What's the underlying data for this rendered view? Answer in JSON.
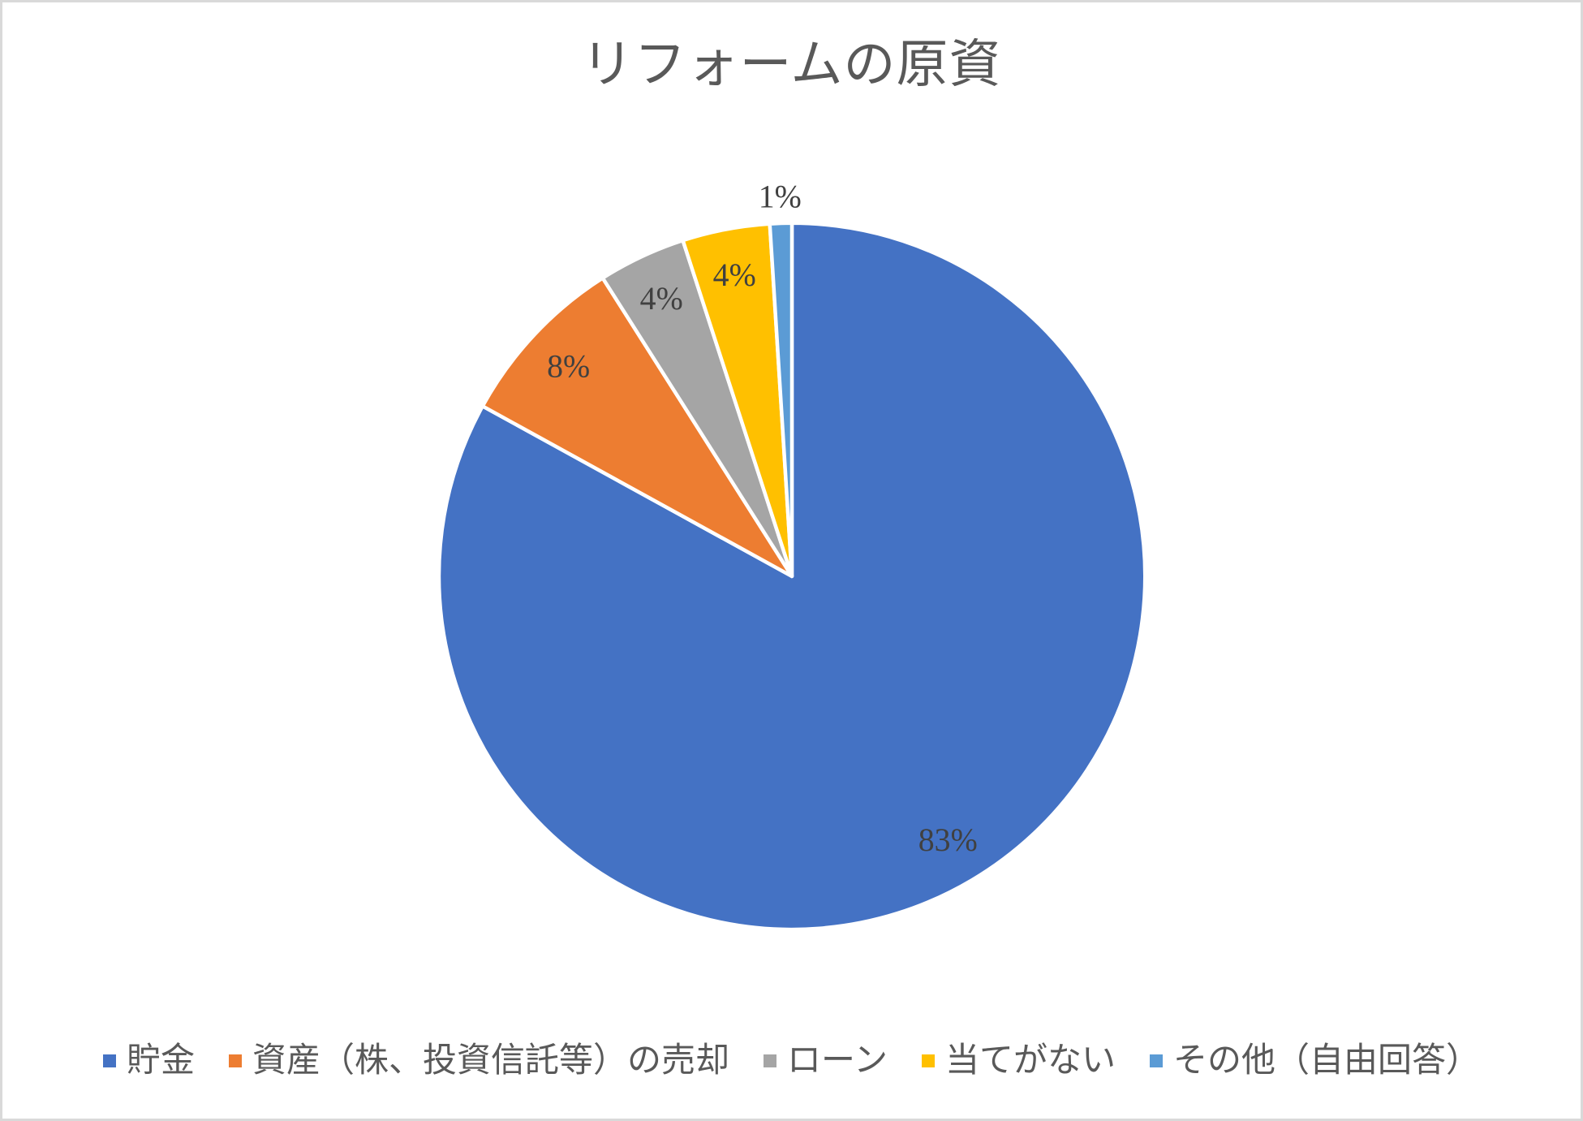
{
  "chart_data": {
    "type": "pie",
    "title": "リフォームの原資",
    "legend_position": "bottom",
    "start_angle_deg": 0,
    "direction": "clockwise",
    "data_labels": "percent",
    "background_color": "#FFFFFF",
    "frame_border_color": "#D9D9D9",
    "text_colors": {
      "title": "#595959",
      "data_label": "#404040",
      "legend": "#595959"
    },
    "slices": [
      {
        "label": "貯金",
        "value": 83,
        "data_label": "83%",
        "color": "#4472C4",
        "label_placement": "inside"
      },
      {
        "label": "資産（株、投資信託等）の売却",
        "value": 8,
        "data_label": "8%",
        "color": "#ED7D31",
        "label_placement": "inside"
      },
      {
        "label": "ローン",
        "value": 4,
        "data_label": "4%",
        "color": "#A5A5A5",
        "label_placement": "inside"
      },
      {
        "label": "当てがない",
        "value": 4,
        "data_label": "4%",
        "color": "#FFC000",
        "label_placement": "inside"
      },
      {
        "label": "その他（自由回答）",
        "value": 1,
        "data_label": "1%",
        "color": "#5B9BD5",
        "label_placement": "outside"
      }
    ]
  }
}
